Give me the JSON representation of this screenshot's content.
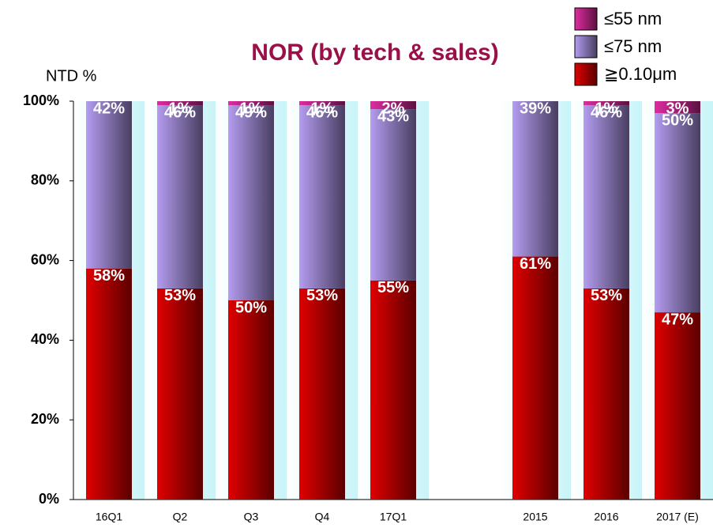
{
  "chart_data": {
    "type": "stacked_bar",
    "title": "NOR (by tech & sales)",
    "y_axis_label": "NTD %",
    "categories": [
      "16Q1",
      "Q2",
      "Q3",
      "Q4",
      "17Q1",
      null,
      "2015",
      "2016",
      "2017 (E)"
    ],
    "series": [
      {
        "name": "≧0.10μm",
        "color": "#e00000",
        "values": [
          58,
          53,
          50,
          53,
          55,
          null,
          61,
          53,
          47
        ],
        "value_labels": [
          "58%",
          "53%",
          "50%",
          "53%",
          "55%",
          null,
          "61%",
          "53%",
          "47%"
        ]
      },
      {
        "name": "≤75 nm",
        "color": "#b49cf0",
        "values": [
          42,
          46,
          49,
          46,
          43,
          null,
          39,
          46,
          50
        ],
        "value_labels": [
          "42%",
          "46%",
          "49%",
          "46%",
          "43%",
          null,
          "39%",
          "46%",
          "50%"
        ]
      },
      {
        "name": "≤55 nm",
        "color": "#e02ca0",
        "values": [
          0,
          1,
          1,
          1,
          2,
          null,
          0,
          1,
          3
        ],
        "value_labels": [
          null,
          "1%",
          "1%",
          "1%",
          "2%",
          null,
          null,
          "1%",
          "3%"
        ]
      }
    ],
    "ylim": [
      0,
      100
    ],
    "yticks": [
      {
        "value": 0,
        "label": "0%"
      },
      {
        "value": 20,
        "label": "20%"
      },
      {
        "value": 40,
        "label": "40%"
      },
      {
        "value": 60,
        "label": "60%"
      },
      {
        "value": 80,
        "label": "80%"
      },
      {
        "value": 100,
        "label": "100%"
      }
    ],
    "legend": "top-right"
  }
}
